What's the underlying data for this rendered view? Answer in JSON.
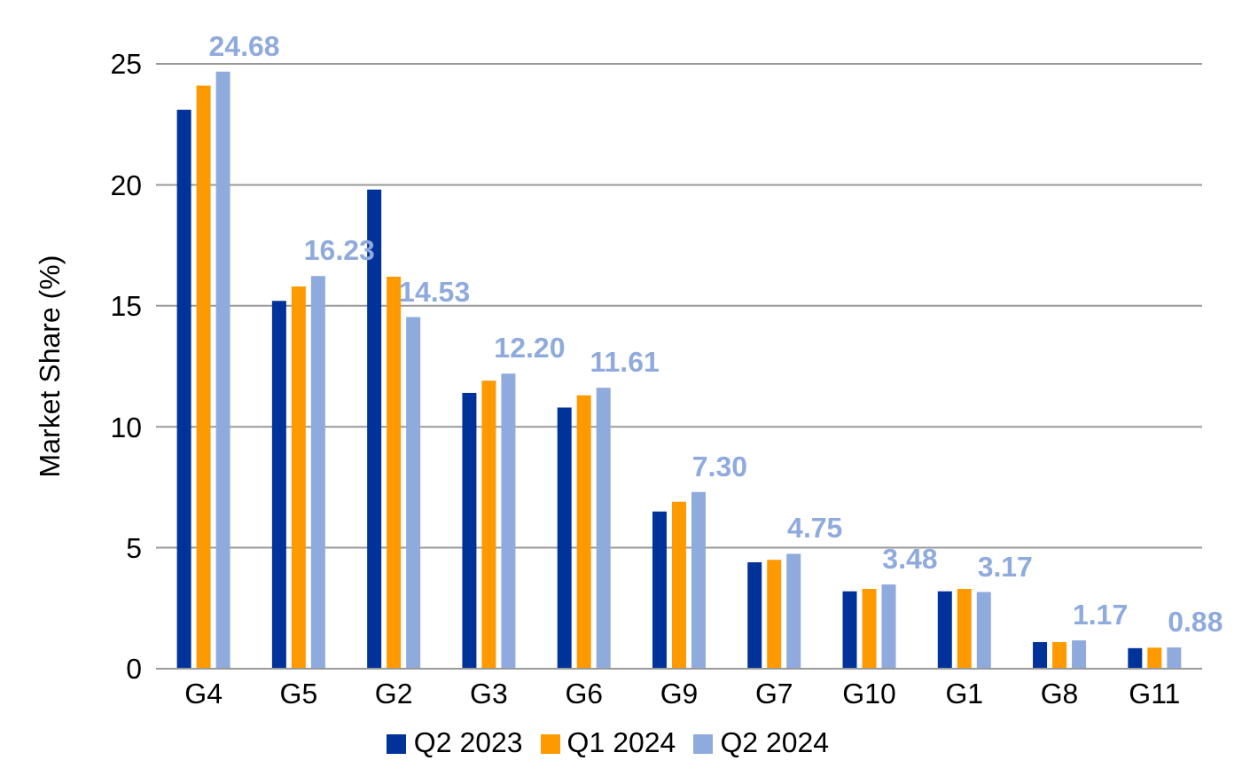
{
  "chart_data": {
    "type": "bar",
    "ylabel": "Market Share (%)",
    "categories": [
      "G4",
      "G5",
      "G2",
      "G3",
      "G6",
      "G9",
      "G7",
      "G10",
      "G1",
      "G8",
      "G11"
    ],
    "series": [
      {
        "name": "Q2 2023",
        "color": "#003399",
        "values": [
          23.1,
          15.2,
          19.8,
          11.4,
          10.8,
          6.5,
          4.4,
          3.2,
          3.2,
          1.1,
          0.85
        ]
      },
      {
        "name": "Q1 2024",
        "color": "#ff9900",
        "values": [
          24.1,
          15.8,
          16.2,
          11.9,
          11.3,
          6.9,
          4.5,
          3.3,
          3.3,
          1.1,
          0.87
        ]
      },
      {
        "name": "Q2 2024",
        "color": "#8faadc",
        "values": [
          24.68,
          16.23,
          14.53,
          12.2,
          11.61,
          7.3,
          4.75,
          3.48,
          3.17,
          1.17,
          0.88
        ],
        "value_labels": [
          "24.68",
          "16.23",
          "14.53",
          "12.20",
          "11.61",
          "7.30",
          "4.75",
          "3.48",
          "3.17",
          "1.17",
          "0.88"
        ]
      }
    ],
    "ylim": [
      0,
      25
    ],
    "yticks": [
      0,
      5,
      10,
      15,
      20,
      25
    ],
    "grid": "y",
    "legend": "bottom"
  }
}
